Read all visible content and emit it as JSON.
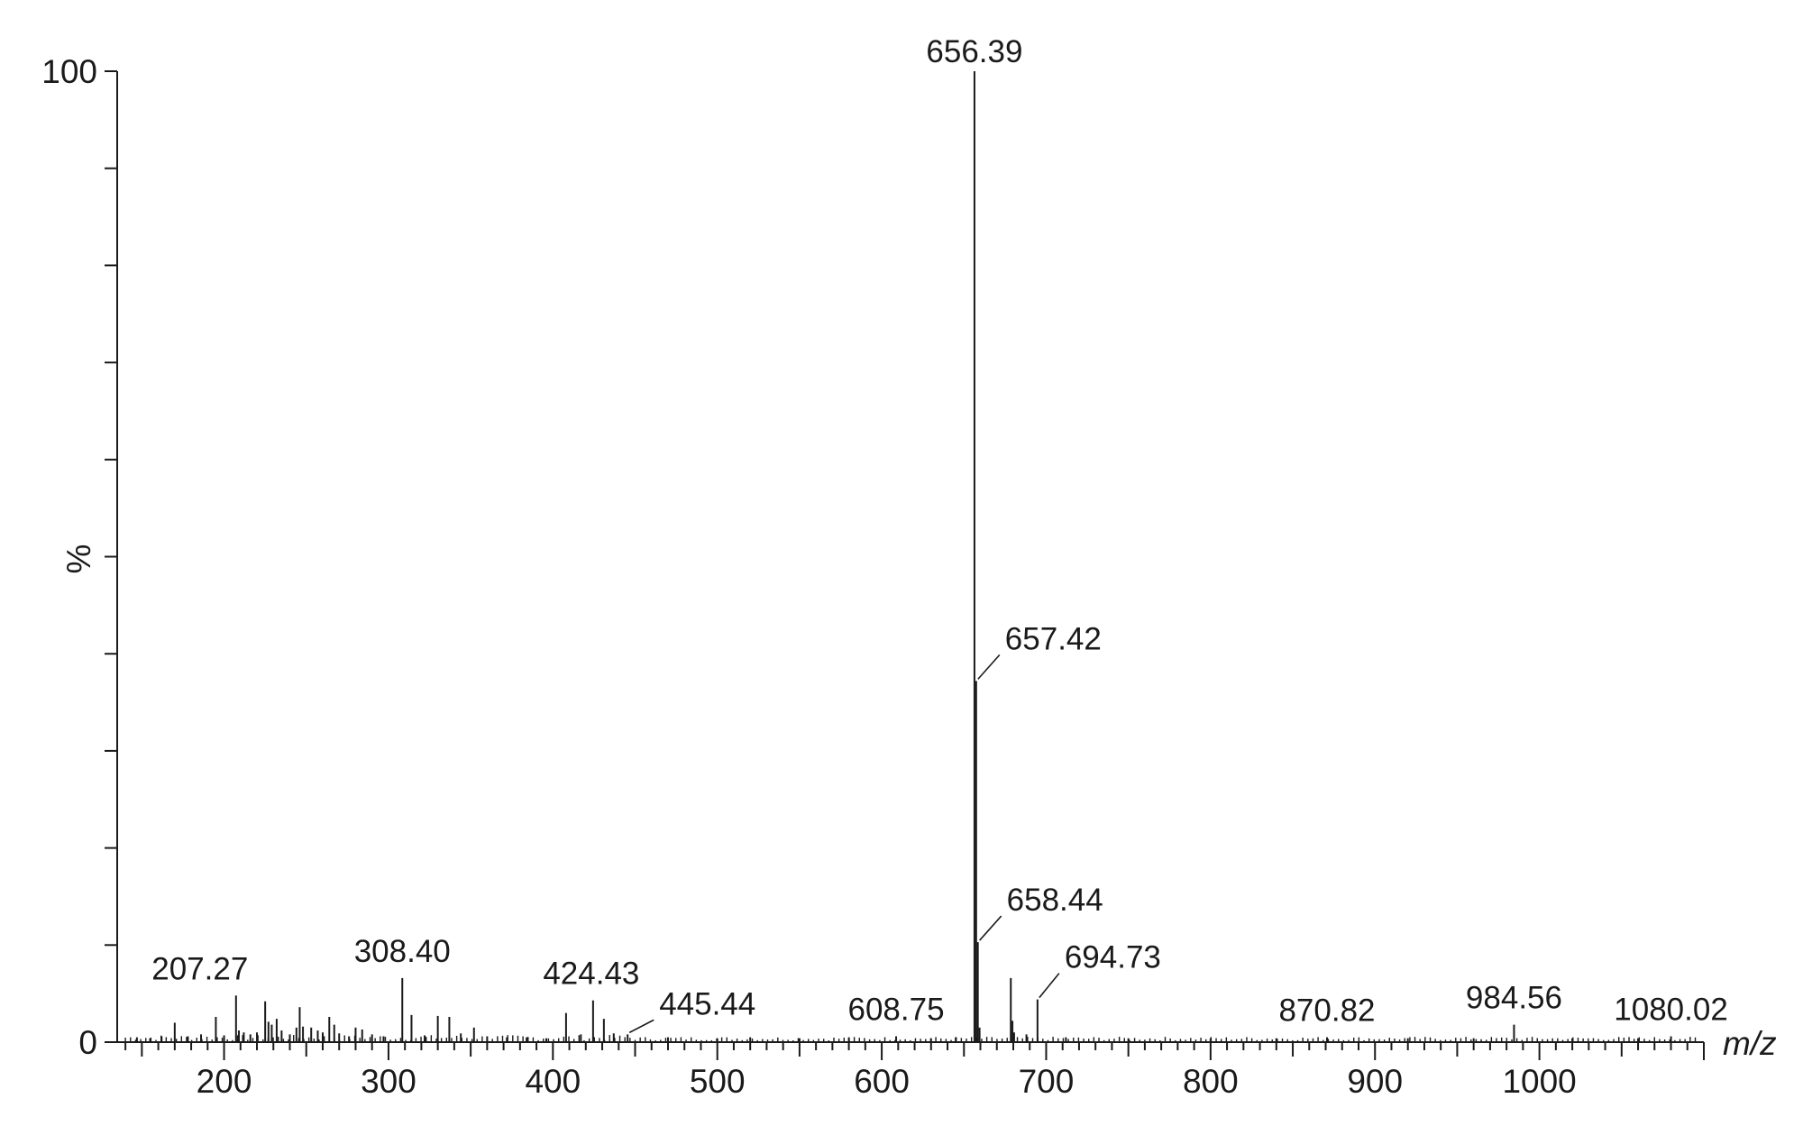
{
  "chart_data": {
    "type": "bar",
    "xlabel": "m/z",
    "ylabel": "%",
    "xlim": [
      135,
      1100
    ],
    "ylim": [
      0,
      100
    ],
    "x_ticks": [
      200,
      300,
      400,
      500,
      600,
      700,
      800,
      900,
      1000
    ],
    "y_tick_labels": [
      0,
      100
    ],
    "y_minor_step": 10,
    "grid": false,
    "series": [
      {
        "points": [
          {
            "mz": 147,
            "pct": 0.5
          },
          {
            "mz": 155,
            "pct": 0.4
          },
          {
            "mz": 162,
            "pct": 0.6
          },
          {
            "mz": 170,
            "pct": 2.0
          },
          {
            "mz": 178,
            "pct": 0.6
          },
          {
            "mz": 186,
            "pct": 0.8
          },
          {
            "mz": 195,
            "pct": 2.6
          },
          {
            "mz": 200,
            "pct": 0.7
          },
          {
            "mz": 207.27,
            "pct": 4.8
          },
          {
            "mz": 209,
            "pct": 1.2
          },
          {
            "mz": 212,
            "pct": 1.0
          },
          {
            "mz": 216,
            "pct": 0.8
          },
          {
            "mz": 220,
            "pct": 1.0
          },
          {
            "mz": 225,
            "pct": 4.2
          },
          {
            "mz": 227,
            "pct": 2.1
          },
          {
            "mz": 229,
            "pct": 1.8
          },
          {
            "mz": 232,
            "pct": 2.4
          },
          {
            "mz": 235,
            "pct": 1.2
          },
          {
            "mz": 240,
            "pct": 0.8
          },
          {
            "mz": 244,
            "pct": 1.5
          },
          {
            "mz": 246,
            "pct": 3.6
          },
          {
            "mz": 248,
            "pct": 1.6
          },
          {
            "mz": 253,
            "pct": 1.5
          },
          {
            "mz": 257,
            "pct": 1.2
          },
          {
            "mz": 260,
            "pct": 1.0
          },
          {
            "mz": 264,
            "pct": 2.6
          },
          {
            "mz": 267,
            "pct": 1.8
          },
          {
            "mz": 270,
            "pct": 0.9
          },
          {
            "mz": 276,
            "pct": 0.6
          },
          {
            "mz": 280,
            "pct": 1.5
          },
          {
            "mz": 284,
            "pct": 1.3
          },
          {
            "mz": 290,
            "pct": 0.8
          },
          {
            "mz": 297,
            "pct": 0.6
          },
          {
            "mz": 308.4,
            "pct": 6.6
          },
          {
            "mz": 314,
            "pct": 2.8
          },
          {
            "mz": 322,
            "pct": 0.7
          },
          {
            "mz": 330,
            "pct": 2.7
          },
          {
            "mz": 337,
            "pct": 2.6
          },
          {
            "mz": 344,
            "pct": 0.9
          },
          {
            "mz": 352,
            "pct": 1.5
          },
          {
            "mz": 360,
            "pct": 0.6
          },
          {
            "mz": 372,
            "pct": 0.5
          },
          {
            "mz": 384,
            "pct": 0.5
          },
          {
            "mz": 396,
            "pct": 0.4
          },
          {
            "mz": 408,
            "pct": 3.0
          },
          {
            "mz": 417,
            "pct": 0.8
          },
          {
            "mz": 424.43,
            "pct": 4.3
          },
          {
            "mz": 431,
            "pct": 2.4
          },
          {
            "mz": 437,
            "pct": 0.9
          },
          {
            "mz": 445.44,
            "pct": 0.8
          },
          {
            "mz": 470,
            "pct": 0.5
          },
          {
            "mz": 500,
            "pct": 0.4
          },
          {
            "mz": 520,
            "pct": 0.5
          },
          {
            "mz": 550,
            "pct": 0.4
          },
          {
            "mz": 580,
            "pct": 0.5
          },
          {
            "mz": 608.75,
            "pct": 0.6
          },
          {
            "mz": 630,
            "pct": 0.4
          },
          {
            "mz": 645,
            "pct": 0.5
          },
          {
            "mz": 656.39,
            "pct": 100
          },
          {
            "mz": 657.42,
            "pct": 37.2
          },
          {
            "mz": 658.44,
            "pct": 10.3
          },
          {
            "mz": 659.5,
            "pct": 1.5
          },
          {
            "mz": 678.5,
            "pct": 6.6
          },
          {
            "mz": 679.5,
            "pct": 2.2
          },
          {
            "mz": 680.5,
            "pct": 1.0
          },
          {
            "mz": 688,
            "pct": 0.8
          },
          {
            "mz": 694.73,
            "pct": 4.4
          },
          {
            "mz": 712,
            "pct": 0.5
          },
          {
            "mz": 750,
            "pct": 0.4
          },
          {
            "mz": 800,
            "pct": 0.4
          },
          {
            "mz": 840,
            "pct": 0.4
          },
          {
            "mz": 870.82,
            "pct": 0.5
          },
          {
            "mz": 920,
            "pct": 0.4
          },
          {
            "mz": 960,
            "pct": 0.4
          },
          {
            "mz": 984.56,
            "pct": 1.8
          },
          {
            "mz": 1020,
            "pct": 0.4
          },
          {
            "mz": 1060,
            "pct": 0.4
          },
          {
            "mz": 1080.02,
            "pct": 0.6
          }
        ]
      }
    ],
    "peak_labels": [
      {
        "mz": 656.39,
        "text": "656.39"
      },
      {
        "mz": 657.42,
        "text": "657.42"
      },
      {
        "mz": 658.44,
        "text": "658.44"
      },
      {
        "mz": 694.73,
        "text": "694.73"
      },
      {
        "mz": 207.27,
        "text": "207.27"
      },
      {
        "mz": 308.4,
        "text": "308.40"
      },
      {
        "mz": 424.43,
        "text": "424.43"
      },
      {
        "mz": 445.44,
        "text": "445.44"
      },
      {
        "mz": 608.75,
        "text": "608.75"
      },
      {
        "mz": 870.82,
        "text": "870.82"
      },
      {
        "mz": 984.56,
        "text": "984.56"
      },
      {
        "mz": 1080.02,
        "text": "1080.02"
      }
    ]
  }
}
